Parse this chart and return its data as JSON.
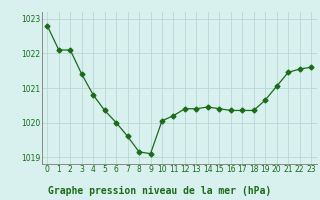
{
  "x": [
    0,
    1,
    2,
    3,
    4,
    5,
    6,
    7,
    8,
    9,
    10,
    11,
    12,
    13,
    14,
    15,
    16,
    17,
    18,
    19,
    20,
    21,
    22,
    23
  ],
  "y": [
    1022.8,
    1022.1,
    1022.1,
    1021.4,
    1020.8,
    1020.35,
    1020.0,
    1019.6,
    1019.15,
    1019.1,
    1020.05,
    1020.2,
    1020.4,
    1020.4,
    1020.45,
    1020.4,
    1020.35,
    1020.35,
    1020.35,
    1020.65,
    1021.05,
    1021.45,
    1021.55,
    1021.6
  ],
  "line_color": "#1a6b1a",
  "marker": "D",
  "marker_size": 2.5,
  "bg_color": "#d8f0ee",
  "grid_color": "#b8d8d4",
  "title": "Graphe pression niveau de la mer (hPa)",
  "ylim": [
    1018.8,
    1023.2
  ],
  "yticks": [
    1019,
    1020,
    1021,
    1022,
    1023
  ],
  "xticks": [
    0,
    1,
    2,
    3,
    4,
    5,
    6,
    7,
    8,
    9,
    10,
    11,
    12,
    13,
    14,
    15,
    16,
    17,
    18,
    19,
    20,
    21,
    22,
    23
  ],
  "tick_label_size": 5.5,
  "title_fontsize": 7.0,
  "title_color": "#1a6b1a",
  "spine_color": "#888888"
}
